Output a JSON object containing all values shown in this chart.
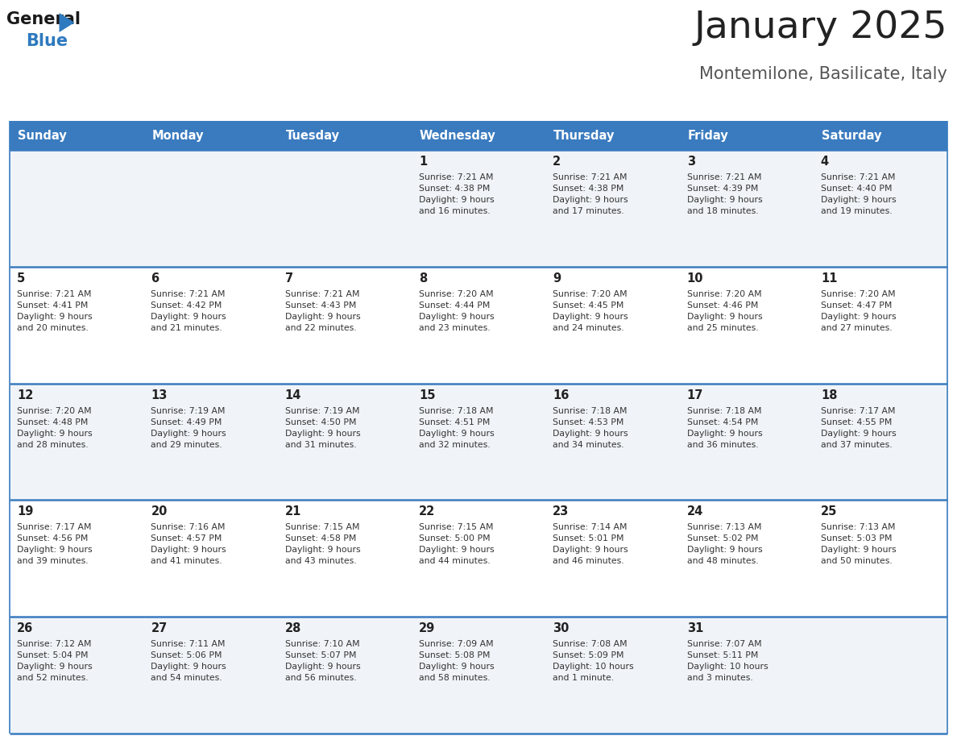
{
  "title": "January 2025",
  "subtitle": "Montemilone, Basilicate, Italy",
  "header_bg_color": "#3a7bbf",
  "header_text_color": "#ffffff",
  "weekdays": [
    "Sunday",
    "Monday",
    "Tuesday",
    "Wednesday",
    "Thursday",
    "Friday",
    "Saturday"
  ],
  "row_bg_colors": [
    "#f0f4f8",
    "#ffffff",
    "#f0f4f8",
    "#ffffff",
    "#f0f4f8"
  ],
  "cell_border_color": "#3a7bbf",
  "day_number_color": "#222222",
  "info_text_color": "#333333",
  "title_color": "#222222",
  "subtitle_color": "#555555",
  "logo_general_color": "#1a1a1a",
  "logo_blue_color": "#2e7abf",
  "calendar_data": [
    [
      {
        "day": null,
        "info": null
      },
      {
        "day": null,
        "info": null
      },
      {
        "day": null,
        "info": null
      },
      {
        "day": 1,
        "info": "Sunrise: 7:21 AM\nSunset: 4:38 PM\nDaylight: 9 hours\nand 16 minutes."
      },
      {
        "day": 2,
        "info": "Sunrise: 7:21 AM\nSunset: 4:38 PM\nDaylight: 9 hours\nand 17 minutes."
      },
      {
        "day": 3,
        "info": "Sunrise: 7:21 AM\nSunset: 4:39 PM\nDaylight: 9 hours\nand 18 minutes."
      },
      {
        "day": 4,
        "info": "Sunrise: 7:21 AM\nSunset: 4:40 PM\nDaylight: 9 hours\nand 19 minutes."
      }
    ],
    [
      {
        "day": 5,
        "info": "Sunrise: 7:21 AM\nSunset: 4:41 PM\nDaylight: 9 hours\nand 20 minutes."
      },
      {
        "day": 6,
        "info": "Sunrise: 7:21 AM\nSunset: 4:42 PM\nDaylight: 9 hours\nand 21 minutes."
      },
      {
        "day": 7,
        "info": "Sunrise: 7:21 AM\nSunset: 4:43 PM\nDaylight: 9 hours\nand 22 minutes."
      },
      {
        "day": 8,
        "info": "Sunrise: 7:20 AM\nSunset: 4:44 PM\nDaylight: 9 hours\nand 23 minutes."
      },
      {
        "day": 9,
        "info": "Sunrise: 7:20 AM\nSunset: 4:45 PM\nDaylight: 9 hours\nand 24 minutes."
      },
      {
        "day": 10,
        "info": "Sunrise: 7:20 AM\nSunset: 4:46 PM\nDaylight: 9 hours\nand 25 minutes."
      },
      {
        "day": 11,
        "info": "Sunrise: 7:20 AM\nSunset: 4:47 PM\nDaylight: 9 hours\nand 27 minutes."
      }
    ],
    [
      {
        "day": 12,
        "info": "Sunrise: 7:20 AM\nSunset: 4:48 PM\nDaylight: 9 hours\nand 28 minutes."
      },
      {
        "day": 13,
        "info": "Sunrise: 7:19 AM\nSunset: 4:49 PM\nDaylight: 9 hours\nand 29 minutes."
      },
      {
        "day": 14,
        "info": "Sunrise: 7:19 AM\nSunset: 4:50 PM\nDaylight: 9 hours\nand 31 minutes."
      },
      {
        "day": 15,
        "info": "Sunrise: 7:18 AM\nSunset: 4:51 PM\nDaylight: 9 hours\nand 32 minutes."
      },
      {
        "day": 16,
        "info": "Sunrise: 7:18 AM\nSunset: 4:53 PM\nDaylight: 9 hours\nand 34 minutes."
      },
      {
        "day": 17,
        "info": "Sunrise: 7:18 AM\nSunset: 4:54 PM\nDaylight: 9 hours\nand 36 minutes."
      },
      {
        "day": 18,
        "info": "Sunrise: 7:17 AM\nSunset: 4:55 PM\nDaylight: 9 hours\nand 37 minutes."
      }
    ],
    [
      {
        "day": 19,
        "info": "Sunrise: 7:17 AM\nSunset: 4:56 PM\nDaylight: 9 hours\nand 39 minutes."
      },
      {
        "day": 20,
        "info": "Sunrise: 7:16 AM\nSunset: 4:57 PM\nDaylight: 9 hours\nand 41 minutes."
      },
      {
        "day": 21,
        "info": "Sunrise: 7:15 AM\nSunset: 4:58 PM\nDaylight: 9 hours\nand 43 minutes."
      },
      {
        "day": 22,
        "info": "Sunrise: 7:15 AM\nSunset: 5:00 PM\nDaylight: 9 hours\nand 44 minutes."
      },
      {
        "day": 23,
        "info": "Sunrise: 7:14 AM\nSunset: 5:01 PM\nDaylight: 9 hours\nand 46 minutes."
      },
      {
        "day": 24,
        "info": "Sunrise: 7:13 AM\nSunset: 5:02 PM\nDaylight: 9 hours\nand 48 minutes."
      },
      {
        "day": 25,
        "info": "Sunrise: 7:13 AM\nSunset: 5:03 PM\nDaylight: 9 hours\nand 50 minutes."
      }
    ],
    [
      {
        "day": 26,
        "info": "Sunrise: 7:12 AM\nSunset: 5:04 PM\nDaylight: 9 hours\nand 52 minutes."
      },
      {
        "day": 27,
        "info": "Sunrise: 7:11 AM\nSunset: 5:06 PM\nDaylight: 9 hours\nand 54 minutes."
      },
      {
        "day": 28,
        "info": "Sunrise: 7:10 AM\nSunset: 5:07 PM\nDaylight: 9 hours\nand 56 minutes."
      },
      {
        "day": 29,
        "info": "Sunrise: 7:09 AM\nSunset: 5:08 PM\nDaylight: 9 hours\nand 58 minutes."
      },
      {
        "day": 30,
        "info": "Sunrise: 7:08 AM\nSunset: 5:09 PM\nDaylight: 10 hours\nand 1 minute."
      },
      {
        "day": 31,
        "info": "Sunrise: 7:07 AM\nSunset: 5:11 PM\nDaylight: 10 hours\nand 3 minutes."
      },
      {
        "day": null,
        "info": null
      }
    ]
  ]
}
